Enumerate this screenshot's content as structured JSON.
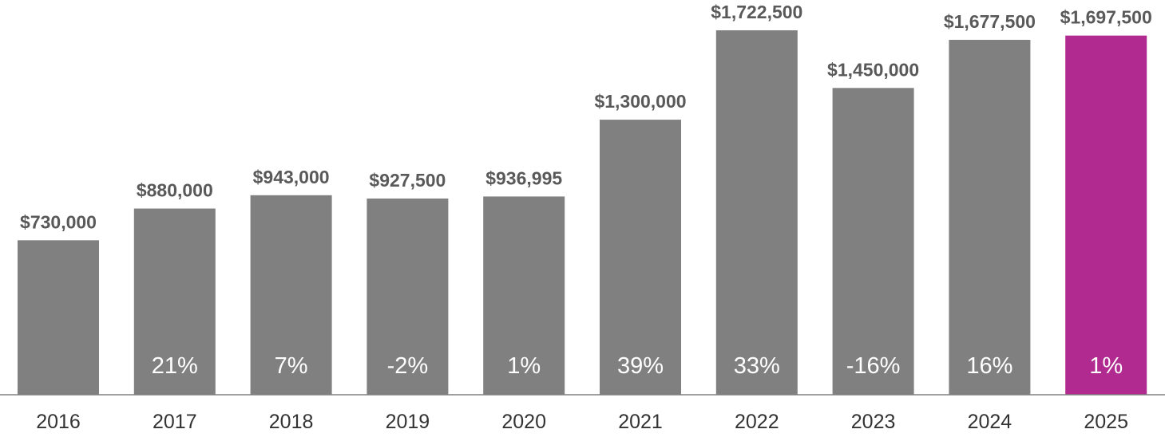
{
  "chart_data": {
    "type": "bar",
    "categories": [
      "2016",
      "2017",
      "2018",
      "2019",
      "2020",
      "2021",
      "2022",
      "2023",
      "2024",
      "2025"
    ],
    "values": [
      730000,
      880000,
      943000,
      927500,
      936995,
      1300000,
      1722500,
      1450000,
      1677500,
      1697500
    ],
    "value_labels": [
      "$730,000",
      "$880,000",
      "$943,000",
      "$927,500",
      "$936,995",
      "$1,300,000",
      "$1,722,500",
      "$1,450,000",
      "$1,677,500",
      "$1,697,500"
    ],
    "change_labels": [
      "",
      "21%",
      "7%",
      "-2%",
      "1%",
      "39%",
      "33%",
      "-16%",
      "16%",
      "1%"
    ],
    "highlight_index": 9,
    "colors": {
      "bar": "#808080",
      "highlight": "#b02a8f",
      "axis": "#808080",
      "value_text": "#595959",
      "change_text": "#ffffff",
      "tick_text": "#333333"
    },
    "title": "",
    "xlabel": "",
    "ylabel": "",
    "ylim": [
      0,
      1722500
    ],
    "grid": false,
    "legend": "none"
  }
}
